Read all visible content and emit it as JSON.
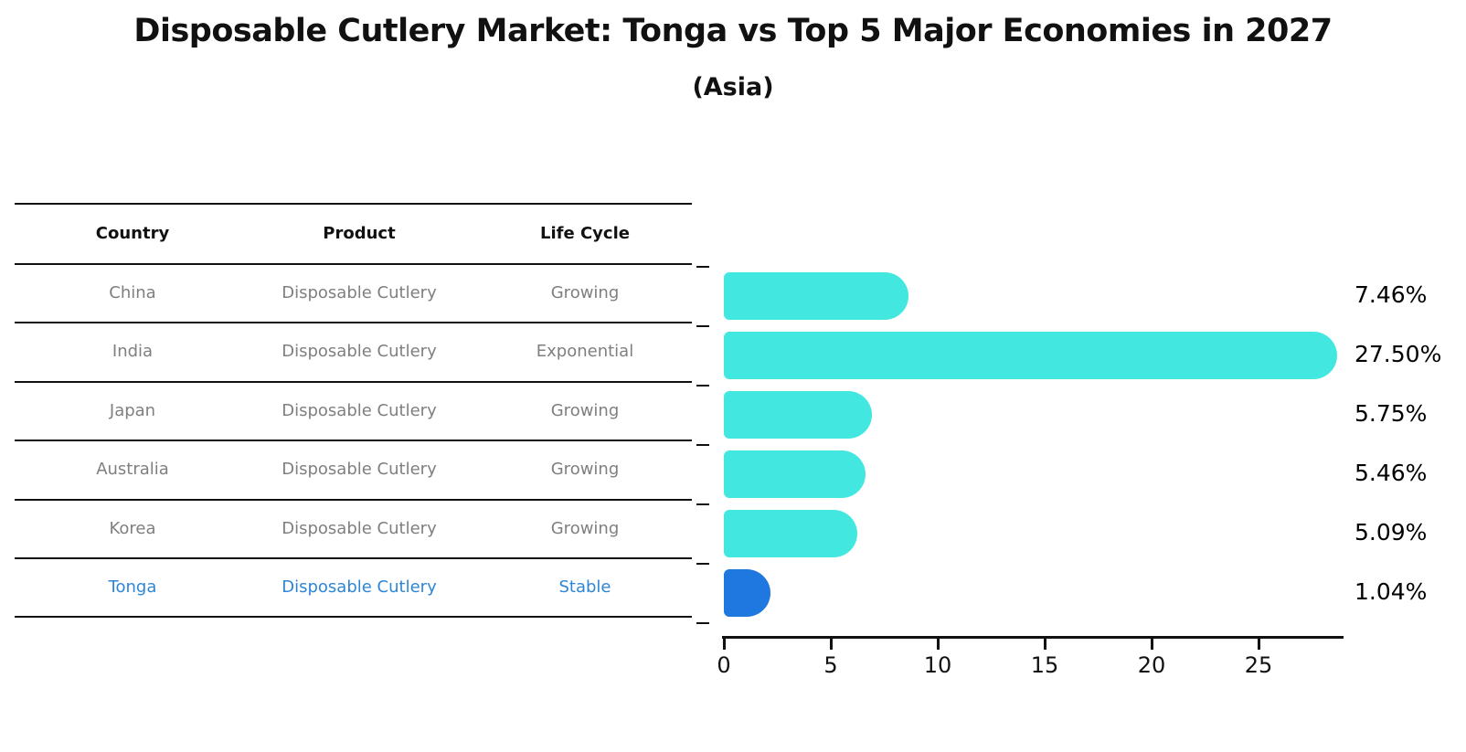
{
  "chart_data": {
    "type": "bar",
    "orientation": "horizontal",
    "title": "Disposable Cutlery Market: Tonga vs Top 5 Major Economies in 2027",
    "subtitle": "(Asia)",
    "categories": [
      "China",
      "India",
      "Japan",
      "Australia",
      "Korea",
      "Tonga"
    ],
    "values": [
      7.46,
      27.5,
      5.75,
      5.46,
      5.09,
      1.04
    ],
    "value_labels": [
      "7.46%",
      "27.50%",
      "5.75%",
      "5.46%",
      "5.09%",
      "1.04%"
    ],
    "xticks": [
      "0",
      "5",
      "10",
      "15",
      "20",
      "25"
    ],
    "xlim": [
      0,
      29
    ],
    "grid": false,
    "legend": false,
    "bar_color": "#42e8e0",
    "highlight_color": "#1f78df",
    "highlight_index": 5
  },
  "table": {
    "columns": [
      "Country",
      "Product",
      "Life Cycle"
    ],
    "rows": [
      {
        "country": "China",
        "product": "Disposable Cutlery",
        "life_cycle": "Growing",
        "highlight": false
      },
      {
        "country": "India",
        "product": "Disposable Cutlery",
        "life_cycle": "Exponential",
        "highlight": false
      },
      {
        "country": "Japan",
        "product": "Disposable Cutlery",
        "life_cycle": "Growing",
        "highlight": false
      },
      {
        "country": "Australia",
        "product": "Disposable Cutlery",
        "life_cycle": "Growing",
        "highlight": false
      },
      {
        "country": "Korea",
        "product": "Disposable Cutlery",
        "life_cycle": "Growing",
        "highlight": false
      },
      {
        "country": "Tonga",
        "product": "Disposable Cutlery",
        "life_cycle": "Stable",
        "highlight": true
      }
    ]
  },
  "colors": {
    "bar": "#42e8e0",
    "highlight_bar": "#1f78df",
    "highlight_text": "#2e86d6",
    "table_text": "#7f7f7f",
    "axis": "#111111"
  }
}
